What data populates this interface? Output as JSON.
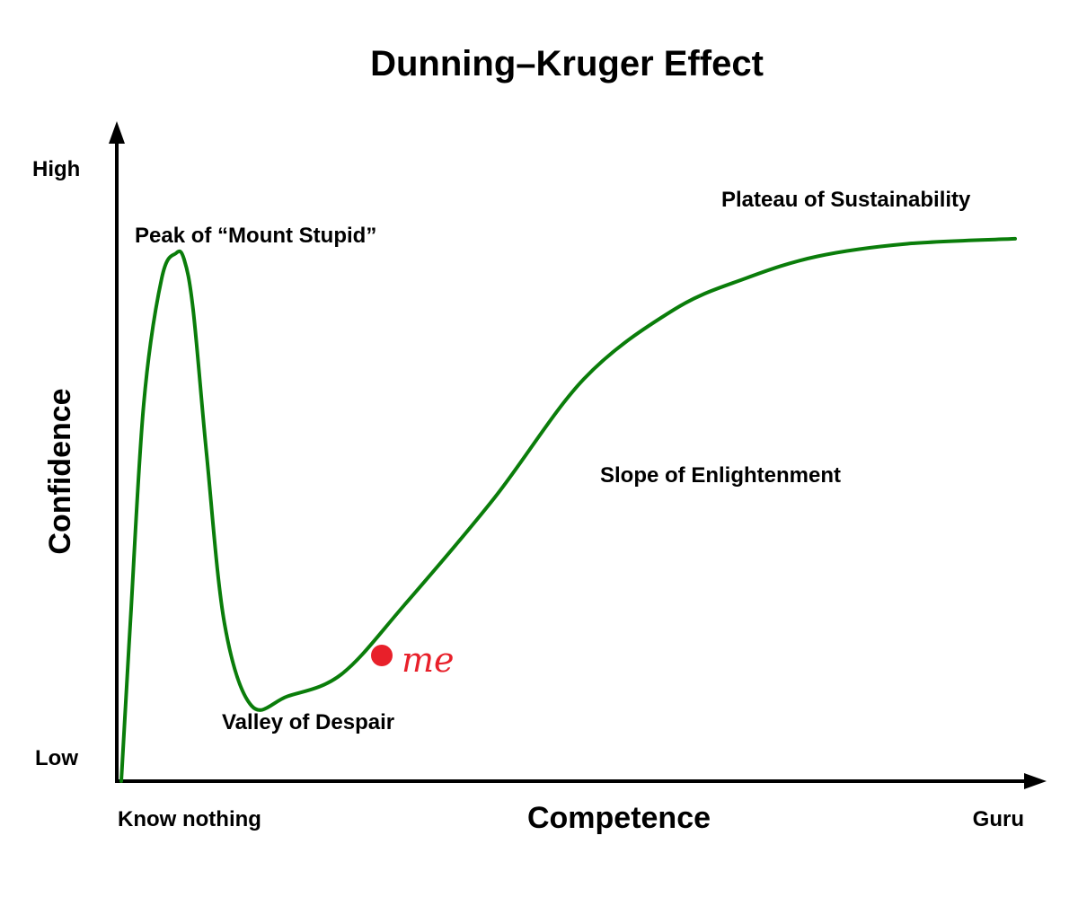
{
  "chart_data": {
    "type": "line",
    "title": "Dunning–Kruger Effect",
    "xlabel": "Competence",
    "ylabel": "Confidence",
    "x_ticks": [
      "Know nothing",
      "Guru"
    ],
    "y_ticks": [
      "Low",
      "High"
    ],
    "xlim": [
      0,
      100
    ],
    "ylim": [
      0,
      100
    ],
    "grid": false,
    "legend": "none",
    "series": [
      {
        "color": "#0a7d0a",
        "x": [
          0.5,
          1.5,
          3,
          5,
          6.6,
          7.5,
          8.5,
          10,
          12,
          15,
          19,
          25,
          32,
          42,
          52,
          62,
          70,
          78,
          88,
          100
        ],
        "y": [
          0,
          25,
          60,
          80,
          84,
          83,
          75,
          52,
          25,
          12,
          13.5,
          17,
          28,
          45,
          64,
          75,
          80,
          83.5,
          85.5,
          86.3
        ]
      }
    ],
    "annotations": [
      {
        "text": "Peak of “Mount Stupid”",
        "x": 2,
        "y": 92
      },
      {
        "text": "Valley of Despair",
        "x": 12,
        "y": 10
      },
      {
        "text": "Slope of Enlightenment",
        "x": 54.5,
        "y": 53
      },
      {
        "text": "Plateau of Sustainability",
        "x": 68,
        "y": 90
      }
    ],
    "marker": {
      "label": "me",
      "x": 29.5,
      "y": 20,
      "color": "#e8202a"
    }
  }
}
